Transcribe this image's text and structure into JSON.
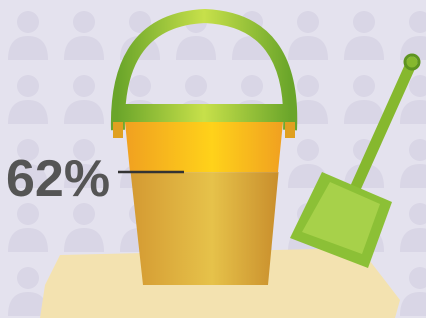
{
  "chart_data": {
    "type": "bucket-fill",
    "values": [
      62
    ],
    "value_labels": [
      "62%"
    ],
    "color": "#d9a83a"
  }
}
